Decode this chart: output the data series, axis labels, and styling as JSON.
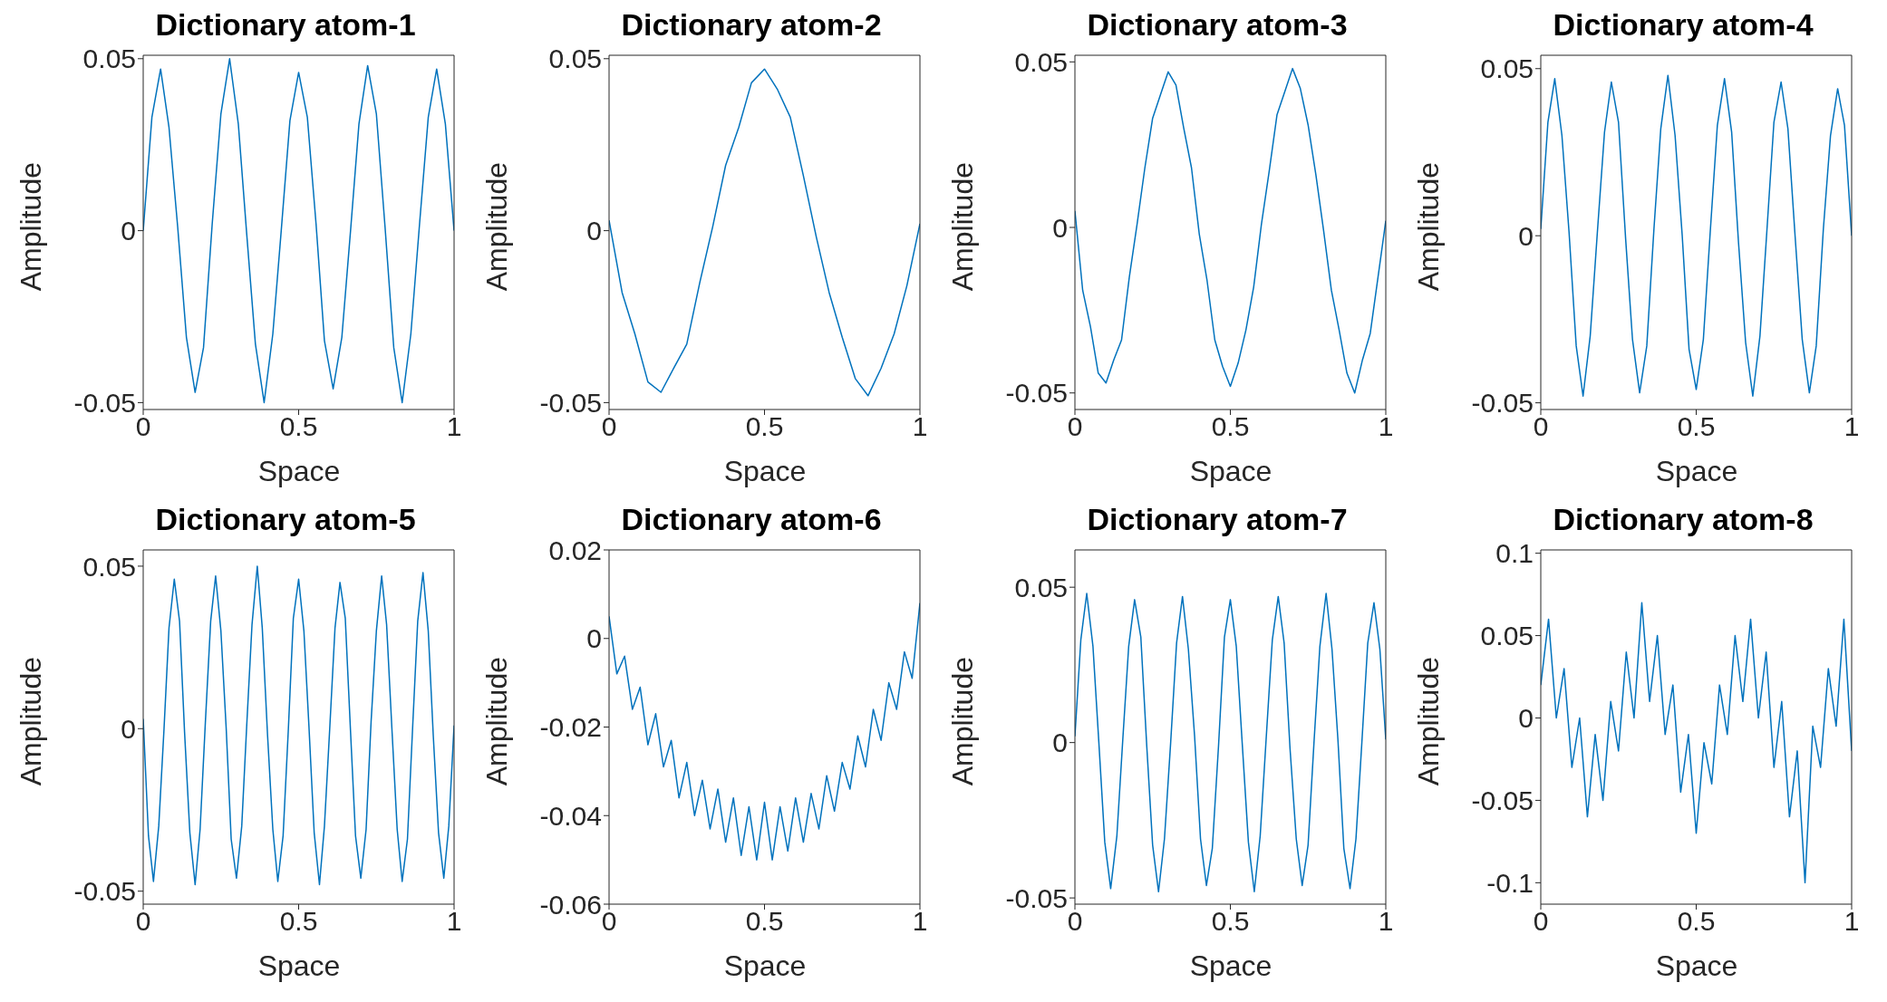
{
  "chart_data": [
    {
      "type": "line",
      "title": "Dictionary atom-1",
      "xlabel": "Space",
      "ylabel": "Amplitude",
      "color": "#0072bd",
      "xlim": [
        0,
        1
      ],
      "xticks": [
        0,
        0.5,
        1
      ],
      "ylim": [
        -0.052,
        0.051
      ],
      "yticks": [
        -0.05,
        0,
        0.05
      ],
      "x": [
        0,
        0.028,
        0.056,
        0.083,
        0.111,
        0.139,
        0.167,
        0.194,
        0.222,
        0.25,
        0.278,
        0.306,
        0.333,
        0.361,
        0.389,
        0.417,
        0.444,
        0.472,
        0.5,
        0.528,
        0.556,
        0.583,
        0.611,
        0.639,
        0.667,
        0.694,
        0.722,
        0.75,
        0.778,
        0.806,
        0.833,
        0.861,
        0.889,
        0.917,
        0.944,
        0.972,
        1
      ],
      "values": [
        0,
        0.033,
        0.047,
        0.03,
        0.001,
        -0.031,
        -0.047,
        -0.034,
        0.002,
        0.034,
        0.05,
        0.031,
        -0.001,
        -0.033,
        -0.05,
        -0.03,
        0,
        0.032,
        0.046,
        0.033,
        0.002,
        -0.032,
        -0.046,
        -0.031,
        0,
        0.031,
        0.048,
        0.034,
        0.001,
        -0.034,
        -0.05,
        -0.03,
        0.002,
        0.033,
        0.047,
        0.031,
        0
      ]
    },
    {
      "type": "line",
      "title": "Dictionary atom-2",
      "xlabel": "Space",
      "ylabel": "Amplitude",
      "color": "#0072bd",
      "xlim": [
        0,
        1
      ],
      "xticks": [
        0,
        0.5,
        1
      ],
      "ylim": [
        -0.052,
        0.051
      ],
      "yticks": [
        -0.05,
        0,
        0.05
      ],
      "x": [
        0,
        0.042,
        0.083,
        0.125,
        0.167,
        0.208,
        0.25,
        0.292,
        0.333,
        0.375,
        0.417,
        0.458,
        0.5,
        0.542,
        0.583,
        0.625,
        0.667,
        0.708,
        0.75,
        0.792,
        0.833,
        0.875,
        0.917,
        0.958,
        1
      ],
      "values": [
        0.003,
        -0.018,
        -0.03,
        -0.044,
        -0.047,
        -0.04,
        -0.033,
        -0.015,
        0.001,
        0.019,
        0.03,
        0.043,
        0.047,
        0.041,
        0.033,
        0.016,
        -0.002,
        -0.018,
        -0.031,
        -0.043,
        -0.048,
        -0.04,
        -0.03,
        -0.016,
        0.002
      ]
    },
    {
      "type": "line",
      "title": "Dictionary atom-3",
      "xlabel": "Space",
      "ylabel": "Amplitude",
      "color": "#0072bd",
      "xlim": [
        0,
        1
      ],
      "xticks": [
        0,
        0.5,
        1
      ],
      "ylim": [
        -0.055,
        0.052
      ],
      "yticks": [
        -0.05,
        0,
        0.05
      ],
      "x": [
        0,
        0.025,
        0.05,
        0.075,
        0.1,
        0.125,
        0.15,
        0.175,
        0.2,
        0.225,
        0.25,
        0.275,
        0.3,
        0.325,
        0.35,
        0.375,
        0.4,
        0.425,
        0.45,
        0.475,
        0.5,
        0.525,
        0.55,
        0.575,
        0.6,
        0.625,
        0.65,
        0.675,
        0.7,
        0.725,
        0.75,
        0.775,
        0.8,
        0.825,
        0.85,
        0.875,
        0.9,
        0.925,
        0.95,
        0.975,
        1
      ],
      "values": [
        0.005,
        -0.019,
        -0.03,
        -0.044,
        -0.047,
        -0.04,
        -0.034,
        -0.015,
        0.001,
        0.018,
        0.033,
        0.04,
        0.047,
        0.043,
        0.03,
        0.018,
        -0.002,
        -0.016,
        -0.034,
        -0.042,
        -0.048,
        -0.041,
        -0.031,
        -0.018,
        0.001,
        0.017,
        0.034,
        0.041,
        0.048,
        0.042,
        0.031,
        0.016,
        -0.001,
        -0.019,
        -0.031,
        -0.044,
        -0.05,
        -0.04,
        -0.032,
        -0.015,
        0.002
      ]
    },
    {
      "type": "line",
      "title": "Dictionary atom-4",
      "xlabel": "Space",
      "ylabel": "Amplitude",
      "color": "#0072bd",
      "xlim": [
        0,
        1
      ],
      "xticks": [
        0,
        0.5,
        1
      ],
      "ylim": [
        -0.052,
        0.054
      ],
      "yticks": [
        -0.05,
        0,
        0.05
      ],
      "x": [
        0,
        0.023,
        0.045,
        0.068,
        0.091,
        0.114,
        0.136,
        0.159,
        0.182,
        0.205,
        0.227,
        0.25,
        0.273,
        0.295,
        0.318,
        0.341,
        0.364,
        0.386,
        0.409,
        0.432,
        0.455,
        0.477,
        0.5,
        0.523,
        0.545,
        0.568,
        0.591,
        0.614,
        0.636,
        0.659,
        0.682,
        0.705,
        0.727,
        0.75,
        0.773,
        0.795,
        0.818,
        0.841,
        0.864,
        0.886,
        0.909,
        0.932,
        0.955,
        0.977,
        1
      ],
      "values": [
        0.002,
        0.034,
        0.047,
        0.03,
        0.001,
        -0.033,
        -0.048,
        -0.03,
        0.001,
        0.031,
        0.046,
        0.034,
        -0.001,
        -0.031,
        -0.047,
        -0.033,
        0.002,
        0.032,
        0.048,
        0.03,
        0,
        -0.034,
        -0.046,
        -0.031,
        0.001,
        0.033,
        0.047,
        0.031,
        -0.002,
        -0.032,
        -0.048,
        -0.03,
        0.001,
        0.034,
        0.046,
        0.032,
        0,
        -0.031,
        -0.047,
        -0.033,
        0.002,
        0.03,
        0.044,
        0.033,
        0
      ]
    },
    {
      "type": "line",
      "title": "Dictionary atom-5",
      "xlabel": "Space",
      "ylabel": "Amplitude",
      "color": "#0072bd",
      "xlim": [
        0,
        1
      ],
      "xticks": [
        0,
        0.5,
        1
      ],
      "ylim": [
        -0.054,
        0.055
      ],
      "yticks": [
        -0.05,
        0,
        0.05
      ],
      "x": [
        0,
        0.017,
        0.033,
        0.05,
        0.067,
        0.083,
        0.1,
        0.117,
        0.133,
        0.15,
        0.167,
        0.183,
        0.2,
        0.217,
        0.233,
        0.25,
        0.267,
        0.283,
        0.3,
        0.317,
        0.333,
        0.35,
        0.367,
        0.383,
        0.4,
        0.417,
        0.433,
        0.45,
        0.467,
        0.483,
        0.5,
        0.517,
        0.533,
        0.55,
        0.567,
        0.583,
        0.6,
        0.617,
        0.633,
        0.65,
        0.667,
        0.683,
        0.7,
        0.717,
        0.733,
        0.75,
        0.767,
        0.783,
        0.8,
        0.817,
        0.833,
        0.85,
        0.867,
        0.883,
        0.9,
        0.917,
        0.933,
        0.95,
        0.967,
        0.983,
        1
      ],
      "values": [
        0.003,
        -0.033,
        -0.047,
        -0.03,
        0,
        0.031,
        0.046,
        0.033,
        -0.001,
        -0.032,
        -0.048,
        -0.031,
        0.002,
        0.033,
        0.047,
        0.03,
        0,
        -0.034,
        -0.046,
        -0.03,
        0.001,
        0.032,
        0.05,
        0.031,
        -0.002,
        -0.031,
        -0.047,
        -0.033,
        0,
        0.034,
        0.046,
        0.03,
        0.001,
        -0.032,
        -0.048,
        -0.03,
        0,
        0.031,
        0.045,
        0.034,
        -0.001,
        -0.033,
        -0.046,
        -0.031,
        0.002,
        0.03,
        0.047,
        0.032,
        0,
        -0.031,
        -0.047,
        -0.034,
        0.001,
        0.033,
        0.048,
        0.03,
        -0.002,
        -0.032,
        -0.046,
        -0.03,
        0.001
      ]
    },
    {
      "type": "line",
      "title": "Dictionary atom-6",
      "xlabel": "Space",
      "ylabel": "Amplitude",
      "color": "#0072bd",
      "xlim": [
        0,
        1
      ],
      "xticks": [
        0,
        0.5,
        1
      ],
      "ylim": [
        -0.06,
        0.02
      ],
      "yticks": [
        -0.06,
        -0.04,
        -0.02,
        0,
        0.02
      ],
      "x": [
        0,
        0.025,
        0.05,
        0.075,
        0.1,
        0.125,
        0.15,
        0.175,
        0.2,
        0.225,
        0.25,
        0.275,
        0.3,
        0.325,
        0.35,
        0.375,
        0.4,
        0.425,
        0.45,
        0.475,
        0.5,
        0.525,
        0.55,
        0.575,
        0.6,
        0.625,
        0.65,
        0.675,
        0.7,
        0.725,
        0.75,
        0.775,
        0.8,
        0.825,
        0.85,
        0.875,
        0.9,
        0.925,
        0.95,
        0.975,
        1
      ],
      "values": [
        0.005,
        -0.008,
        -0.004,
        -0.016,
        -0.011,
        -0.024,
        -0.017,
        -0.029,
        -0.023,
        -0.036,
        -0.028,
        -0.04,
        -0.032,
        -0.043,
        -0.034,
        -0.046,
        -0.036,
        -0.049,
        -0.038,
        -0.05,
        -0.037,
        -0.05,
        -0.038,
        -0.048,
        -0.036,
        -0.046,
        -0.035,
        -0.043,
        -0.031,
        -0.039,
        -0.028,
        -0.034,
        -0.022,
        -0.029,
        -0.016,
        -0.023,
        -0.01,
        -0.016,
        -0.003,
        -0.009,
        0.008
      ]
    },
    {
      "type": "line",
      "title": "Dictionary atom-7",
      "xlabel": "Space",
      "ylabel": "Amplitude",
      "color": "#0072bd",
      "xlim": [
        0,
        1
      ],
      "xticks": [
        0,
        0.5,
        1
      ],
      "ylim": [
        -0.052,
        0.062
      ],
      "yticks": [
        -0.05,
        0,
        0.05
      ],
      "x": [
        0,
        0.019,
        0.038,
        0.058,
        0.077,
        0.096,
        0.115,
        0.135,
        0.154,
        0.173,
        0.192,
        0.212,
        0.231,
        0.25,
        0.269,
        0.288,
        0.308,
        0.327,
        0.346,
        0.365,
        0.385,
        0.404,
        0.423,
        0.442,
        0.462,
        0.481,
        0.5,
        0.519,
        0.538,
        0.558,
        0.577,
        0.596,
        0.615,
        0.635,
        0.654,
        0.673,
        0.692,
        0.712,
        0.731,
        0.75,
        0.769,
        0.788,
        0.808,
        0.827,
        0.846,
        0.865,
        0.885,
        0.904,
        0.923,
        0.942,
        0.962,
        0.981,
        1
      ],
      "values": [
        0.002,
        0.033,
        0.048,
        0.031,
        0,
        -0.032,
        -0.047,
        -0.03,
        0.001,
        0.031,
        0.046,
        0.034,
        -0.001,
        -0.033,
        -0.048,
        -0.031,
        0,
        0.032,
        0.047,
        0.03,
        0.002,
        -0.031,
        -0.046,
        -0.034,
        -0.001,
        0.034,
        0.046,
        0.031,
        0,
        -0.032,
        -0.048,
        -0.03,
        0.001,
        0.033,
        0.047,
        0.032,
        -0.002,
        -0.031,
        -0.046,
        -0.033,
        0,
        0.031,
        0.048,
        0.03,
        0.001,
        -0.034,
        -0.047,
        -0.031,
        0,
        0.032,
        0.045,
        0.03,
        0.001
      ]
    },
    {
      "type": "line",
      "title": "Dictionary atom-8",
      "xlabel": "Space",
      "ylabel": "Amplitude",
      "color": "#0072bd",
      "xlim": [
        0,
        1
      ],
      "xticks": [
        0,
        0.5,
        1
      ],
      "ylim": [
        -0.113,
        0.102
      ],
      "yticks": [
        -0.1,
        -0.05,
        0,
        0.05,
        0.1
      ],
      "x": [
        0,
        0.025,
        0.05,
        0.075,
        0.1,
        0.125,
        0.15,
        0.175,
        0.2,
        0.225,
        0.25,
        0.275,
        0.3,
        0.325,
        0.35,
        0.375,
        0.4,
        0.425,
        0.45,
        0.475,
        0.5,
        0.525,
        0.55,
        0.575,
        0.6,
        0.625,
        0.65,
        0.675,
        0.7,
        0.725,
        0.75,
        0.775,
        0.8,
        0.825,
        0.85,
        0.875,
        0.9,
        0.925,
        0.95,
        0.975,
        1
      ],
      "values": [
        0.02,
        0.06,
        0,
        0.03,
        -0.03,
        0,
        -0.06,
        -0.01,
        -0.05,
        0.01,
        -0.02,
        0.04,
        0,
        0.07,
        0.01,
        0.05,
        -0.01,
        0.02,
        -0.045,
        -0.01,
        -0.07,
        -0.015,
        -0.04,
        0.02,
        -0.01,
        0.05,
        0.01,
        0.06,
        0,
        0.04,
        -0.03,
        0.01,
        -0.06,
        -0.02,
        -0.1,
        -0.005,
        -0.03,
        0.03,
        -0.005,
        0.06,
        -0.02
      ]
    }
  ]
}
